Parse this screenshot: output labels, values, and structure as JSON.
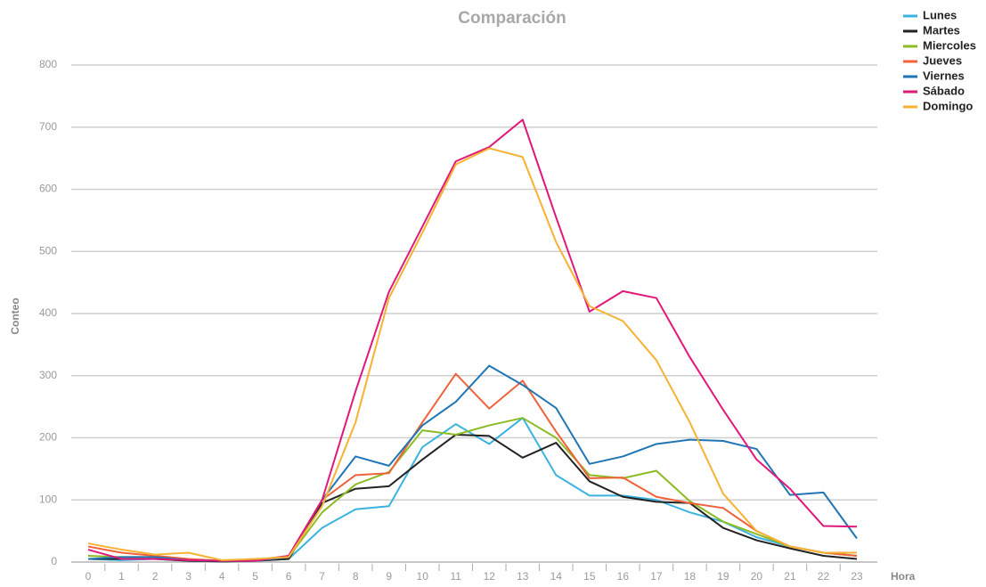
{
  "chart_data": {
    "type": "line",
    "title": "Comparación",
    "x_label": "Hora",
    "y_label": "Conteo",
    "categories": [
      "0",
      "1",
      "2",
      "3",
      "4",
      "5",
      "6",
      "7",
      "8",
      "9",
      "10",
      "11",
      "12",
      "13",
      "14",
      "15",
      "16",
      "17",
      "18",
      "19",
      "20",
      "21",
      "22",
      "23"
    ],
    "ylim": [
      0,
      800
    ],
    "yticks": [
      0,
      100,
      200,
      300,
      400,
      500,
      600,
      700,
      800
    ],
    "grid": true,
    "legend": "upper right",
    "series": [
      {
        "name": "Lunes",
        "color": "#3bb3e0",
        "values": [
          5,
          3,
          5,
          2,
          1,
          2,
          5,
          55,
          85,
          90,
          185,
          222,
          190,
          232,
          140,
          107,
          107,
          100,
          80,
          65,
          40,
          25,
          15,
          10
        ]
      },
      {
        "name": "Martes",
        "color": "#222222",
        "values": [
          5,
          5,
          5,
          2,
          1,
          2,
          5,
          95,
          118,
          122,
          165,
          205,
          203,
          168,
          192,
          130,
          105,
          97,
          95,
          55,
          35,
          22,
          10,
          5
        ]
      },
      {
        "name": "Miercoles",
        "color": "#8dbb25",
        "values": [
          10,
          8,
          8,
          3,
          2,
          2,
          8,
          80,
          125,
          145,
          212,
          205,
          220,
          232,
          200,
          140,
          135,
          147,
          98,
          65,
          45,
          25,
          15,
          10
        ]
      },
      {
        "name": "Jueves",
        "color": "#f0623a",
        "values": [
          25,
          15,
          10,
          5,
          2,
          3,
          10,
          100,
          140,
          143,
          225,
          303,
          247,
          292,
          210,
          135,
          136,
          105,
          95,
          87,
          50,
          25,
          15,
          10
        ]
      },
      {
        "name": "Viernes",
        "color": "#2076b4",
        "values": [
          5,
          8,
          8,
          3,
          2,
          2,
          8,
          100,
          170,
          155,
          220,
          258,
          316,
          285,
          248,
          158,
          170,
          190,
          197,
          195,
          182,
          108,
          112,
          38
        ]
      },
      {
        "name": "Sábado",
        "color": "#e0187a",
        "values": [
          20,
          5,
          5,
          3,
          2,
          2,
          10,
          100,
          275,
          435,
          540,
          645,
          668,
          712,
          555,
          403,
          436,
          425,
          330,
          245,
          165,
          118,
          58,
          57
        ]
      },
      {
        "name": "Domingo",
        "color": "#f5b233",
        "values": [
          30,
          20,
          12,
          15,
          3,
          5,
          8,
          90,
          225,
          425,
          530,
          640,
          666,
          652,
          515,
          412,
          388,
          325,
          225,
          110,
          50,
          25,
          15,
          15
        ]
      }
    ]
  }
}
